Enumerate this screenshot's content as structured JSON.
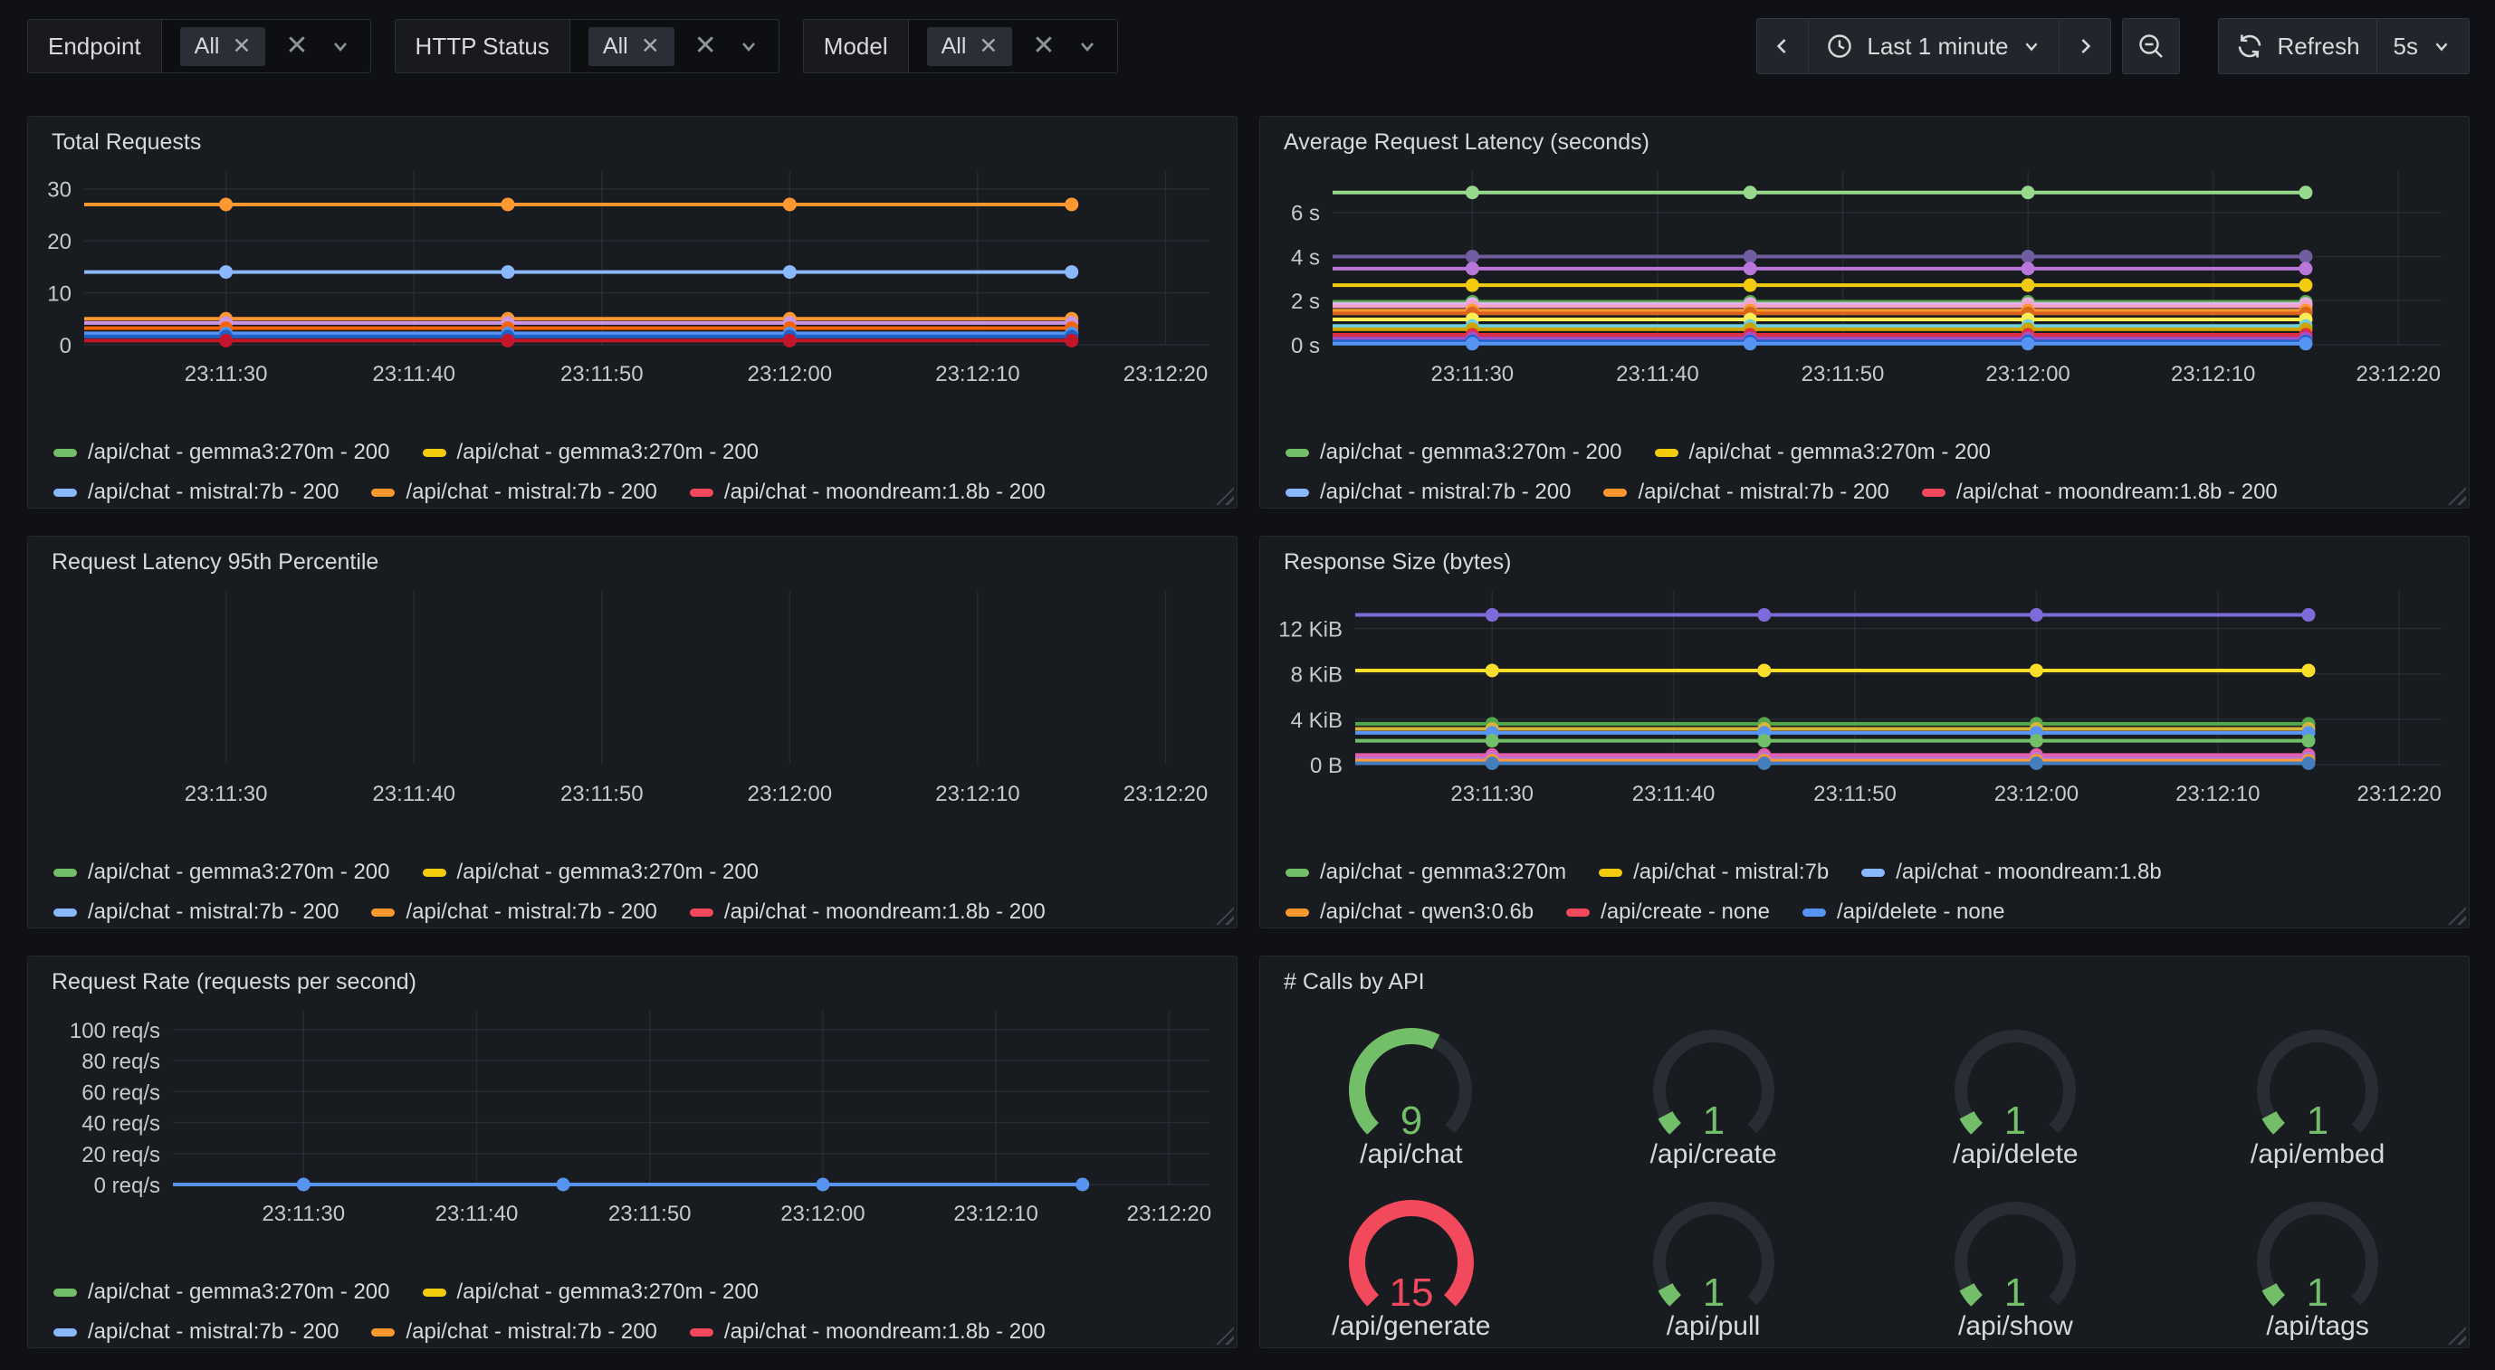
{
  "toolbar": {
    "filters": [
      {
        "label": "Endpoint",
        "value": "All"
      },
      {
        "label": "HTTP Status",
        "value": "All"
      },
      {
        "label": "Model",
        "value": "All"
      }
    ],
    "time": {
      "range_label": "Last 1 minute",
      "refresh_label": "Refresh",
      "interval": "5s"
    }
  },
  "chart_data": [
    {
      "panel": "Total Requests",
      "type": "line",
      "x_ticks": [
        "23:11:30",
        "23:11:40",
        "23:11:50",
        "23:12:00",
        "23:12:10",
        "23:12:20"
      ],
      "point_times": [
        "23:11:30",
        "23:11:45",
        "23:12:00",
        "23:12:15"
      ],
      "ylim": [
        0,
        31
      ],
      "y_ticks": [
        {
          "v": 0,
          "label": "0"
        },
        {
          "v": 10,
          "label": "10"
        },
        {
          "v": 20,
          "label": "20"
        },
        {
          "v": 30,
          "label": "30"
        }
      ],
      "grid": true,
      "legend_position": "bottom",
      "series": [
        {
          "value": 27,
          "color": "#FF9830"
        },
        {
          "value": 14,
          "color": "#8AB8FF"
        },
        {
          "value": 5,
          "color": "#FF9830"
        },
        {
          "value": 4.2,
          "color": "#CA95E5"
        },
        {
          "value": 3.2,
          "color": "#FA6400"
        },
        {
          "value": 2.2,
          "color": "#5794F2"
        },
        {
          "value": 1.6,
          "color": "#1F60C4"
        },
        {
          "value": 0.8,
          "color": "#C4162A"
        }
      ],
      "legend_rows": [
        [
          {
            "label": "/api/chat - gemma3:270m - 200",
            "color": "#73BF69"
          },
          {
            "label": "/api/chat - gemma3:270m - 200",
            "color": "#F2CC0C"
          }
        ],
        [
          {
            "label": "/api/chat - mistral:7b - 200",
            "color": "#8AB8FF"
          },
          {
            "label": "/api/chat - mistral:7b - 200",
            "color": "#FF9830"
          },
          {
            "label": "/api/chat - moondream:1.8b - 200",
            "color": "#F2495C"
          }
        ]
      ]
    },
    {
      "panel": "Average Request Latency (seconds)",
      "type": "line",
      "x_ticks": [
        "23:11:30",
        "23:11:40",
        "23:11:50",
        "23:12:00",
        "23:12:10",
        "23:12:20"
      ],
      "point_times": [
        "23:11:30",
        "23:11:45",
        "23:12:00",
        "23:12:15"
      ],
      "ylim": [
        0,
        7.3
      ],
      "y_ticks": [
        {
          "v": 0,
          "label": "0 s"
        },
        {
          "v": 2,
          "label": "2 s"
        },
        {
          "v": 4,
          "label": "4 s"
        },
        {
          "v": 6,
          "label": "6 s"
        }
      ],
      "grid": true,
      "legend_position": "bottom",
      "series": [
        {
          "value": 6.9,
          "color": "#96D98D"
        },
        {
          "value": 4.0,
          "color": "#705DA0"
        },
        {
          "value": 3.45,
          "color": "#B877D9"
        },
        {
          "value": 2.7,
          "color": "#F2CC0C"
        },
        {
          "value": 1.95,
          "color": "#56A64B"
        },
        {
          "value": 1.85,
          "color": "#DEB6F2"
        },
        {
          "value": 1.75,
          "color": "#F2A3C9"
        },
        {
          "value": 1.55,
          "color": "#FF9830"
        },
        {
          "value": 1.42,
          "color": "#D9641E"
        },
        {
          "value": 1.15,
          "color": "#FFEE52"
        },
        {
          "value": 0.85,
          "color": "#6ED0E0"
        },
        {
          "value": 0.7,
          "color": "#CCA300"
        },
        {
          "value": 0.45,
          "color": "#E02F44"
        },
        {
          "value": 0.28,
          "color": "#A352CC"
        },
        {
          "value": 0.15,
          "color": "#1F60C4"
        },
        {
          "value": 0.05,
          "color": "#5794F2"
        }
      ],
      "legend_rows": [
        [
          {
            "label": "/api/chat - gemma3:270m - 200",
            "color": "#73BF69"
          },
          {
            "label": "/api/chat - gemma3:270m - 200",
            "color": "#F2CC0C"
          }
        ],
        [
          {
            "label": "/api/chat - mistral:7b - 200",
            "color": "#8AB8FF"
          },
          {
            "label": "/api/chat - mistral:7b - 200",
            "color": "#FF9830"
          },
          {
            "label": "/api/chat - moondream:1.8b - 200",
            "color": "#F2495C"
          }
        ]
      ]
    },
    {
      "panel": "Request Latency 95th Percentile",
      "type": "line",
      "x_ticks": [
        "23:11:30",
        "23:11:40",
        "23:11:50",
        "23:12:00",
        "23:12:10",
        "23:12:20"
      ],
      "point_times": [],
      "ylim": [
        0,
        1
      ],
      "y_ticks": [],
      "grid": true,
      "legend_position": "bottom",
      "series": [],
      "legend_rows": [
        [
          {
            "label": "/api/chat - gemma3:270m - 200",
            "color": "#73BF69"
          },
          {
            "label": "/api/chat - gemma3:270m - 200",
            "color": "#F2CC0C"
          }
        ],
        [
          {
            "label": "/api/chat - mistral:7b - 200",
            "color": "#8AB8FF"
          },
          {
            "label": "/api/chat - mistral:7b - 200",
            "color": "#FF9830"
          },
          {
            "label": "/api/chat - moondream:1.8b - 200",
            "color": "#F2495C"
          }
        ]
      ]
    },
    {
      "panel": "Response Size (bytes)",
      "type": "line",
      "x_ticks": [
        "23:11:30",
        "23:11:40",
        "23:11:50",
        "23:12:00",
        "23:12:10",
        "23:12:20"
      ],
      "point_times": [
        "23:11:30",
        "23:11:45",
        "23:12:00",
        "23:12:15"
      ],
      "unit": "KiB",
      "ylim": [
        0,
        14.2
      ],
      "y_ticks": [
        {
          "v": 0,
          "label": "0 B"
        },
        {
          "v": 4,
          "label": "4 KiB"
        },
        {
          "v": 8,
          "label": "8 KiB"
        },
        {
          "v": 12,
          "label": "12 KiB"
        }
      ],
      "grid": true,
      "legend_position": "bottom",
      "series": [
        {
          "value": 13.2,
          "color": "#7E6BD9"
        },
        {
          "value": 8.3,
          "color": "#FADE2A"
        },
        {
          "value": 3.6,
          "color": "#56A64B"
        },
        {
          "value": 3.15,
          "color": "#D9B43A"
        },
        {
          "value": 2.8,
          "color": "#5794F2"
        },
        {
          "value": 2.1,
          "color": "#73BF69"
        },
        {
          "value": 0.85,
          "color": "#E55FAE"
        },
        {
          "value": 0.55,
          "color": "#B877D9"
        },
        {
          "value": 0.35,
          "color": "#FF9830"
        },
        {
          "value": 0.12,
          "color": "#447EBC"
        }
      ],
      "legend_rows": [
        [
          {
            "label": "/api/chat - gemma3:270m",
            "color": "#73BF69"
          },
          {
            "label": "/api/chat - mistral:7b",
            "color": "#F2CC0C"
          },
          {
            "label": "/api/chat - moondream:1.8b",
            "color": "#8AB8FF"
          }
        ],
        [
          {
            "label": "/api/chat - qwen3:0.6b",
            "color": "#FF9830"
          },
          {
            "label": "/api/create - none",
            "color": "#F2495C"
          },
          {
            "label": "/api/delete - none",
            "color": "#5794F2"
          }
        ]
      ]
    },
    {
      "panel": "Request Rate (requests per second)",
      "type": "line",
      "x_ticks": [
        "23:11:30",
        "23:11:40",
        "23:11:50",
        "23:12:00",
        "23:12:10",
        "23:12:20"
      ],
      "point_times": [
        "23:11:30",
        "23:11:45",
        "23:12:00",
        "23:12:15"
      ],
      "ylim": [
        0,
        104
      ],
      "y_ticks": [
        {
          "v": 0,
          "label": "0 req/s"
        },
        {
          "v": 20,
          "label": "20 req/s"
        },
        {
          "v": 40,
          "label": "40 req/s"
        },
        {
          "v": 60,
          "label": "60 req/s"
        },
        {
          "v": 80,
          "label": "80 req/s"
        },
        {
          "v": 100,
          "label": "100 req/s"
        }
      ],
      "grid": true,
      "legend_position": "bottom",
      "series": [
        {
          "value": 0,
          "color": "#5794F2"
        }
      ],
      "legend_rows": [
        [
          {
            "label": "/api/chat - gemma3:270m - 200",
            "color": "#73BF69"
          },
          {
            "label": "/api/chat - gemma3:270m - 200",
            "color": "#F2CC0C"
          }
        ],
        [
          {
            "label": "/api/chat - mistral:7b - 200",
            "color": "#8AB8FF"
          },
          {
            "label": "/api/chat - mistral:7b - 200",
            "color": "#FF9830"
          },
          {
            "label": "/api/chat - moondream:1.8b - 200",
            "color": "#F2495C"
          }
        ]
      ]
    },
    {
      "panel": "# Calls by API",
      "type": "gauge",
      "max": 15,
      "gauges": [
        {
          "label": "/api/chat",
          "value": 9,
          "color": "#73BF69"
        },
        {
          "label": "/api/create",
          "value": 1,
          "color": "#73BF69"
        },
        {
          "label": "/api/delete",
          "value": 1,
          "color": "#73BF69"
        },
        {
          "label": "/api/embed",
          "value": 1,
          "color": "#73BF69"
        },
        {
          "label": "/api/generate",
          "value": 15,
          "color": "#F2495C"
        },
        {
          "label": "/api/pull",
          "value": 1,
          "color": "#73BF69"
        },
        {
          "label": "/api/show",
          "value": 1,
          "color": "#73BF69"
        },
        {
          "label": "/api/tags",
          "value": 1,
          "color": "#73BF69"
        }
      ]
    }
  ]
}
